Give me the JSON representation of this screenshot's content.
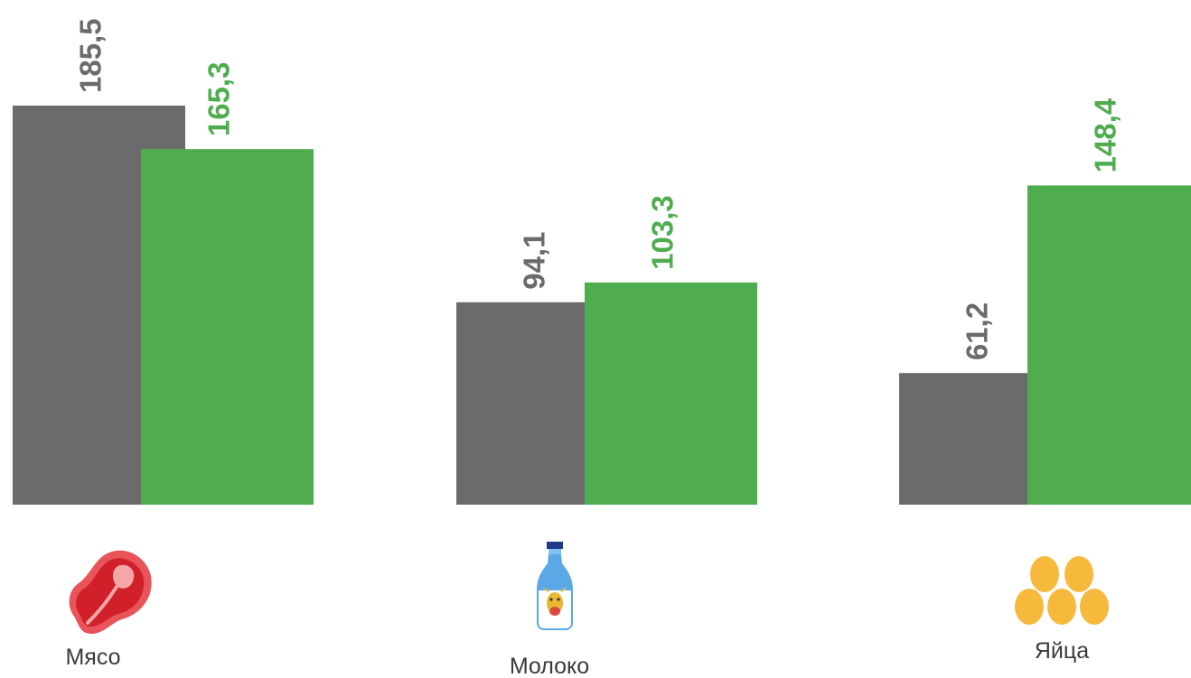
{
  "chart_data": {
    "type": "bar",
    "categories": [
      "Мясо",
      "Молоко",
      "Яйца"
    ],
    "category_icons": [
      "steak-icon",
      "milk-bottle-icon",
      "eggs-icon"
    ],
    "series": [
      {
        "values": [
          185.5,
          94.1,
          61.2
        ],
        "color": "#6b6b6b"
      },
      {
        "values": [
          165.3,
          103.3,
          148.4
        ],
        "color": "#4fad4f"
      }
    ],
    "data_labels": [
      [
        "185,5",
        "94,1",
        "61,2"
      ],
      [
        "165,3",
        "103,3",
        "148,4"
      ]
    ],
    "title": "",
    "xlabel": "",
    "ylabel": "",
    "ylim": [
      0,
      185.5
    ],
    "grid": false,
    "legend": "none"
  }
}
